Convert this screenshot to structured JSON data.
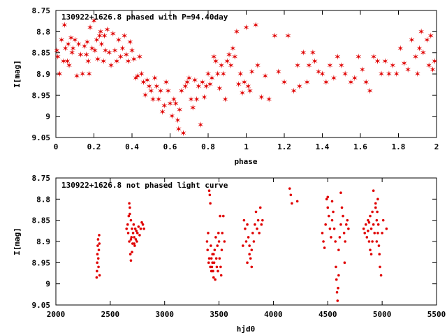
{
  "colors": {
    "points": "#e00000",
    "axes": "#000000",
    "background": "#ffffff"
  },
  "chart_data": [
    {
      "type": "scatter",
      "title": "130922+1626.8 phased with P=94.40day",
      "xlabel": "phase",
      "ylabel": "I[mag]",
      "xlim": [
        0,
        2
      ],
      "ylim": [
        9.05,
        8.75
      ],
      "y_inverted": true,
      "marker": "star",
      "xticks": [
        "0",
        "0.2",
        "0.4",
        "0.6",
        "0.8",
        "1",
        "1.2",
        "1.4",
        "1.6",
        "1.8",
        "2"
      ],
      "yticks": [
        "8.75",
        "8.8",
        "8.85",
        "8.9",
        "8.95",
        "9",
        "9.05"
      ],
      "points": [
        [
          0.005,
          8.845
        ],
        [
          0.01,
          8.86
        ],
        [
          0.02,
          8.9
        ],
        [
          0.03,
          8.82
        ],
        [
          0.04,
          8.87
        ],
        [
          0.045,
          8.785
        ],
        [
          0.05,
          8.84
        ],
        [
          0.06,
          8.87
        ],
        [
          0.065,
          8.83
        ],
        [
          0.07,
          8.88
        ],
        [
          0.08,
          8.815
        ],
        [
          0.085,
          8.85
        ],
        [
          0.09,
          8.84
        ],
        [
          0.1,
          8.82
        ],
        [
          0.11,
          8.905
        ],
        [
          0.12,
          8.83
        ],
        [
          0.13,
          8.855
        ],
        [
          0.14,
          8.9
        ],
        [
          0.15,
          8.835
        ],
        [
          0.16,
          8.855
        ],
        [
          0.165,
          8.825
        ],
        [
          0.17,
          8.87
        ],
        [
          0.175,
          8.9
        ],
        [
          0.18,
          8.79
        ],
        [
          0.19,
          8.84
        ],
        [
          0.2,
          8.775
        ],
        [
          0.205,
          8.845
        ],
        [
          0.215,
          8.82
        ],
        [
          0.22,
          8.865
        ],
        [
          0.23,
          8.81
        ],
        [
          0.235,
          8.8
        ],
        [
          0.24,
          8.83
        ],
        [
          0.25,
          8.87
        ],
        [
          0.255,
          8.81
        ],
        [
          0.26,
          8.845
        ],
        [
          0.27,
          8.795
        ],
        [
          0.28,
          8.85
        ],
        [
          0.29,
          8.88
        ],
        [
          0.3,
          8.805
        ],
        [
          0.31,
          8.845
        ],
        [
          0.32,
          8.87
        ],
        [
          0.33,
          8.82
        ],
        [
          0.34,
          8.86
        ],
        [
          0.35,
          8.84
        ],
        [
          0.36,
          8.81
        ],
        [
          0.37,
          8.855
        ],
        [
          0.38,
          8.87
        ],
        [
          0.39,
          8.825
        ],
        [
          0.4,
          8.845
        ],
        [
          0.41,
          8.865
        ],
        [
          0.42,
          8.91
        ],
        [
          0.43,
          8.905
        ],
        [
          0.44,
          8.86
        ],
        [
          0.45,
          8.9
        ],
        [
          0.46,
          8.92
        ],
        [
          0.47,
          8.95
        ],
        [
          0.48,
          8.915
        ],
        [
          0.49,
          8.93
        ],
        [
          0.5,
          8.94
        ],
        [
          0.51,
          8.96
        ],
        [
          0.52,
          8.91
        ],
        [
          0.53,
          8.93
        ],
        [
          0.54,
          8.96
        ],
        [
          0.55,
          8.94
        ],
        [
          0.56,
          8.99
        ],
        [
          0.57,
          8.975
        ],
        [
          0.58,
          8.92
        ],
        [
          0.59,
          8.94
        ],
        [
          0.6,
          8.97
        ],
        [
          0.61,
          9.0
        ],
        [
          0.62,
          8.96
        ],
        [
          0.63,
          8.97
        ],
        [
          0.64,
          9.01
        ],
        [
          0.645,
          9.03
        ],
        [
          0.65,
          8.985
        ],
        [
          0.66,
          8.94
        ],
        [
          0.67,
          9.04
        ],
        [
          0.68,
          8.93
        ],
        [
          0.69,
          8.92
        ],
        [
          0.7,
          8.91
        ],
        [
          0.71,
          8.96
        ],
        [
          0.72,
          8.98
        ],
        [
          0.73,
          8.915
        ],
        [
          0.74,
          8.96
        ],
        [
          0.75,
          8.93
        ],
        [
          0.76,
          9.02
        ],
        [
          0.77,
          8.92
        ],
        [
          0.78,
          8.955
        ],
        [
          0.79,
          8.93
        ],
        [
          0.8,
          8.9
        ],
        [
          0.81,
          8.925
        ],
        [
          0.82,
          8.91
        ],
        [
          0.83,
          8.86
        ],
        [
          0.84,
          8.87
        ],
        [
          0.85,
          8.9
        ],
        [
          0.86,
          8.935
        ],
        [
          0.87,
          8.88
        ],
        [
          0.88,
          8.9
        ],
        [
          0.89,
          8.96
        ],
        [
          0.9,
          8.87
        ],
        [
          0.91,
          8.855
        ],
        [
          0.92,
          8.88
        ],
        [
          0.93,
          8.84
        ],
        [
          0.94,
          8.86
        ],
        [
          0.95,
          8.8
        ],
        [
          0.96,
          8.925
        ],
        [
          0.97,
          8.9
        ],
        [
          0.98,
          8.945
        ],
        [
          0.99,
          8.92
        ],
        [
          1.0,
          8.79
        ],
        [
          1.01,
          8.93
        ],
        [
          1.02,
          8.94
        ],
        [
          1.03,
          8.895
        ],
        [
          1.05,
          8.785
        ],
        [
          1.06,
          8.88
        ],
        [
          1.08,
          8.955
        ],
        [
          1.1,
          8.905
        ],
        [
          1.12,
          8.96
        ],
        [
          1.15,
          8.81
        ],
        [
          1.17,
          8.895
        ],
        [
          1.2,
          8.92
        ],
        [
          1.22,
          8.81
        ],
        [
          1.25,
          8.94
        ],
        [
          1.27,
          8.88
        ],
        [
          1.28,
          8.93
        ],
        [
          1.3,
          8.85
        ],
        [
          1.32,
          8.92
        ],
        [
          1.33,
          8.88
        ],
        [
          1.35,
          8.85
        ],
        [
          1.36,
          8.87
        ],
        [
          1.38,
          8.895
        ],
        [
          1.4,
          8.9
        ],
        [
          1.42,
          8.92
        ],
        [
          1.44,
          8.88
        ],
        [
          1.46,
          8.91
        ],
        [
          1.48,
          8.86
        ],
        [
          1.5,
          8.88
        ],
        [
          1.52,
          8.9
        ],
        [
          1.55,
          8.92
        ],
        [
          1.57,
          8.91
        ],
        [
          1.59,
          8.86
        ],
        [
          1.61,
          8.89
        ],
        [
          1.63,
          8.92
        ],
        [
          1.65,
          8.94
        ],
        [
          1.67,
          8.86
        ],
        [
          1.69,
          8.87
        ],
        [
          1.71,
          8.9
        ],
        [
          1.73,
          8.87
        ],
        [
          1.75,
          8.9
        ],
        [
          1.77,
          8.88
        ],
        [
          1.79,
          8.9
        ],
        [
          1.81,
          8.84
        ],
        [
          1.83,
          8.875
        ],
        [
          1.85,
          8.89
        ],
        [
          1.87,
          8.82
        ],
        [
          1.89,
          8.86
        ],
        [
          1.9,
          8.9
        ],
        [
          1.91,
          8.84
        ],
        [
          1.92,
          8.8
        ],
        [
          1.93,
          8.85
        ],
        [
          1.95,
          8.82
        ],
        [
          1.96,
          8.88
        ],
        [
          1.97,
          8.81
        ],
        [
          1.98,
          8.89
        ],
        [
          1.99,
          8.87
        ]
      ]
    },
    {
      "type": "scatter",
      "title": "130922+1626.8 not phased light curve",
      "xlabel": "hjd0",
      "ylabel": "I[mag]",
      "xlim": [
        2000,
        5500
      ],
      "ylim": [
        9.05,
        8.75
      ],
      "y_inverted": true,
      "marker": "dot",
      "xticks": [
        "2000",
        "2500",
        "3000",
        "3500",
        "4000",
        "4500",
        "5000",
        "5500"
      ],
      "yticks": [
        "8.75",
        "8.8",
        "8.85",
        "8.9",
        "8.95",
        "9",
        "9.05"
      ],
      "points": [
        [
          2375,
          8.985
        ],
        [
          2378,
          8.97
        ],
        [
          2380,
          8.95
        ],
        [
          2382,
          8.93
        ],
        [
          2385,
          8.91
        ],
        [
          2388,
          8.895
        ],
        [
          2390,
          8.94
        ],
        [
          2392,
          8.96
        ],
        [
          2395,
          8.92
        ],
        [
          2398,
          8.885
        ],
        [
          2400,
          8.905
        ],
        [
          2402,
          8.98
        ],
        [
          2650,
          8.87
        ],
        [
          2660,
          8.86
        ],
        [
          2665,
          8.88
        ],
        [
          2670,
          8.84
        ],
        [
          2675,
          8.9
        ],
        [
          2680,
          8.82
        ],
        [
          2685,
          8.93
        ],
        [
          2690,
          8.85
        ],
        [
          2695,
          8.89
        ],
        [
          2700,
          8.87
        ],
        [
          2705,
          8.905
        ],
        [
          2710,
          8.88
        ],
        [
          2715,
          8.86
        ],
        [
          2720,
          8.89
        ],
        [
          2725,
          8.91
        ],
        [
          2730,
          8.87
        ],
        [
          2735,
          8.895
        ],
        [
          2740,
          8.875
        ],
        [
          2745,
          8.9
        ],
        [
          2750,
          8.88
        ],
        [
          2760,
          8.865
        ],
        [
          2770,
          8.885
        ],
        [
          2780,
          8.87
        ],
        [
          2790,
          8.855
        ],
        [
          2800,
          8.86
        ],
        [
          2810,
          8.87
        ],
        [
          2690,
          8.945
        ],
        [
          2700,
          8.925
        ],
        [
          2720,
          8.905
        ],
        [
          2675,
          8.81
        ],
        [
          2680,
          8.835
        ],
        [
          2690,
          8.895
        ],
        [
          3390,
          8.9
        ],
        [
          3395,
          8.92
        ],
        [
          3400,
          8.88
        ],
        [
          3405,
          8.95
        ],
        [
          3410,
          8.78
        ],
        [
          3415,
          8.79
        ],
        [
          3420,
          8.81
        ],
        [
          3425,
          8.91
        ],
        [
          3430,
          8.94
        ],
        [
          3435,
          8.96
        ],
        [
          3440,
          8.93
        ],
        [
          3445,
          8.97
        ],
        [
          3450,
          8.985
        ],
        [
          3455,
          8.95
        ],
        [
          3460,
          8.92
        ],
        [
          3465,
          8.99
        ],
        [
          3470,
          8.89
        ],
        [
          3475,
          8.94
        ],
        [
          3480,
          8.96
        ],
        [
          3485,
          8.91
        ],
        [
          3490,
          8.97
        ],
        [
          3495,
          8.88
        ],
        [
          3500,
          8.9
        ],
        [
          3505,
          8.94
        ],
        [
          3510,
          8.84
        ],
        [
          3515,
          8.96
        ],
        [
          3520,
          8.98
        ],
        [
          3525,
          8.92
        ],
        [
          3530,
          8.88
        ],
        [
          3540,
          8.84
        ],
        [
          3550,
          8.9
        ],
        [
          3410,
          8.94
        ],
        [
          3420,
          8.96
        ],
        [
          3430,
          8.97
        ],
        [
          3440,
          8.95
        ],
        [
          3450,
          8.93
        ],
        [
          3720,
          8.91
        ],
        [
          3730,
          8.85
        ],
        [
          3740,
          8.87
        ],
        [
          3750,
          8.9
        ],
        [
          3760,
          8.86
        ],
        [
          3770,
          8.89
        ],
        [
          3780,
          8.93
        ],
        [
          3790,
          8.94
        ],
        [
          3800,
          8.96
        ],
        [
          3810,
          8.88
        ],
        [
          3820,
          8.9
        ],
        [
          3830,
          8.86
        ],
        [
          3840,
          8.83
        ],
        [
          3850,
          8.87
        ],
        [
          3860,
          8.85
        ],
        [
          3870,
          8.88
        ],
        [
          3880,
          8.82
        ],
        [
          3890,
          8.86
        ],
        [
          3900,
          8.85
        ],
        [
          3760,
          8.95
        ],
        [
          3780,
          8.91
        ],
        [
          3800,
          8.92
        ],
        [
          4150,
          8.775
        ],
        [
          4160,
          8.79
        ],
        [
          4170,
          8.81
        ],
        [
          4220,
          8.805
        ],
        [
          4450,
          8.88
        ],
        [
          4460,
          8.9
        ],
        [
          4470,
          8.915
        ],
        [
          4480,
          8.86
        ],
        [
          4490,
          8.8
        ],
        [
          4500,
          8.82
        ],
        [
          4510,
          8.84
        ],
        [
          4520,
          8.87
        ],
        [
          4530,
          8.89
        ],
        [
          4540,
          8.85
        ],
        [
          4550,
          8.83
        ],
        [
          4560,
          8.87
        ],
        [
          4570,
          8.9
        ],
        [
          4575,
          8.96
        ],
        [
          4580,
          8.99
        ],
        [
          4585,
          9.02
        ],
        [
          4590,
          9.04
        ],
        [
          4595,
          9.01
        ],
        [
          4600,
          8.92
        ],
        [
          4610,
          8.89
        ],
        [
          4620,
          8.86
        ],
        [
          4630,
          8.82
        ],
        [
          4640,
          8.84
        ],
        [
          4650,
          8.88
        ],
        [
          4655,
          8.95
        ],
        [
          4660,
          8.9
        ],
        [
          4670,
          8.86
        ],
        [
          4680,
          8.85
        ],
        [
          4690,
          8.87
        ],
        [
          4500,
          8.795
        ],
        [
          4540,
          8.805
        ],
        [
          4600,
          8.98
        ],
        [
          4620,
          8.785
        ],
        [
          4830,
          8.87
        ],
        [
          4840,
          8.88
        ],
        [
          4850,
          8.86
        ],
        [
          4860,
          8.89
        ],
        [
          4870,
          8.85
        ],
        [
          4880,
          8.9
        ],
        [
          4890,
          8.84
        ],
        [
          4900,
          8.87
        ],
        [
          4910,
          8.83
        ],
        [
          4920,
          8.86
        ],
        [
          4930,
          8.88
        ],
        [
          4940,
          8.82
        ],
        [
          4950,
          8.9
        ],
        [
          4955,
          8.83
        ],
        [
          4960,
          8.8
        ],
        [
          4965,
          8.86
        ],
        [
          4970,
          8.91
        ],
        [
          4975,
          8.93
        ],
        [
          4980,
          8.96
        ],
        [
          4990,
          8.98
        ],
        [
          5000,
          8.88
        ],
        [
          5010,
          8.85
        ],
        [
          5040,
          8.87
        ],
        [
          4920,
          8.78
        ],
        [
          4940,
          8.81
        ],
        [
          4950,
          8.85
        ],
        [
          4960,
          8.88
        ],
        [
          4900,
          8.93
        ],
        [
          4910,
          8.9
        ],
        [
          4890,
          8.92
        ],
        [
          4880,
          8.855
        ],
        [
          4870,
          8.875
        ]
      ]
    }
  ]
}
